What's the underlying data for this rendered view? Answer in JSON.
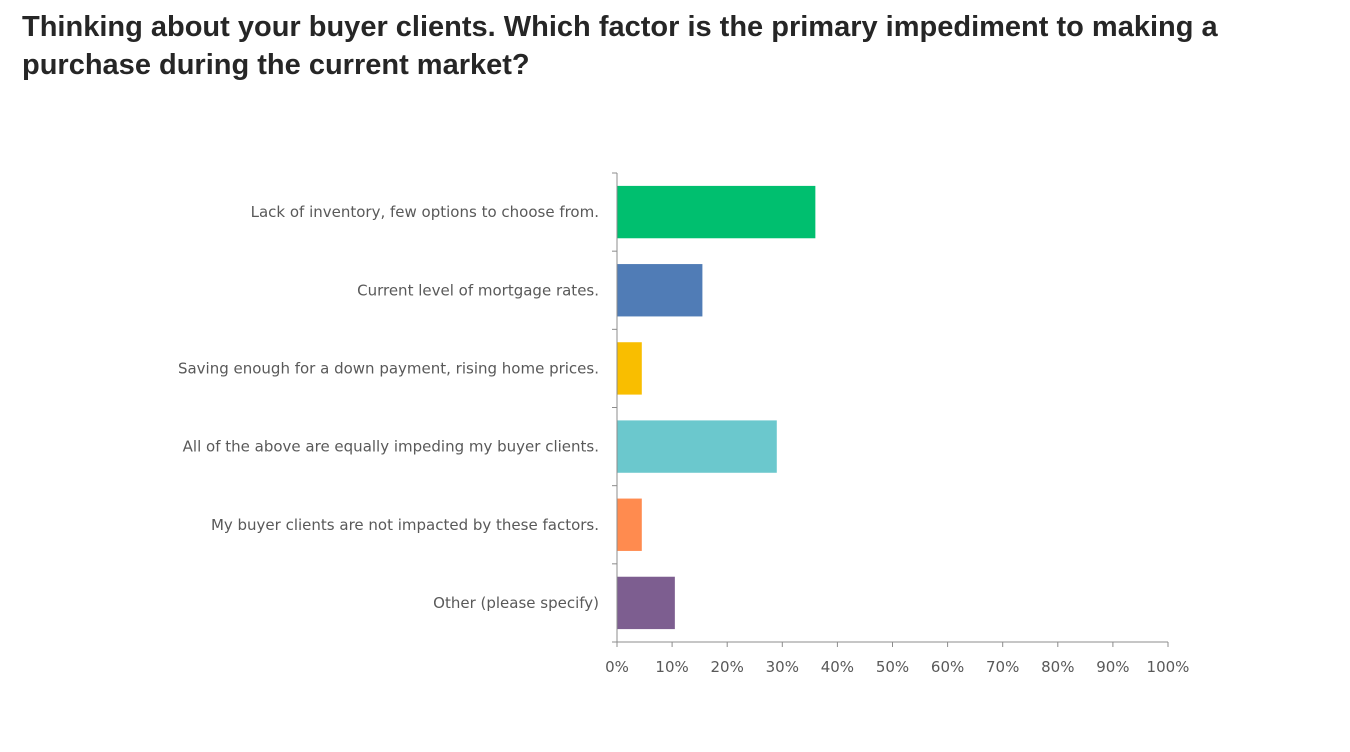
{
  "title": "Thinking about your buyer clients. Which factor is the primary impediment to making a purchase during the current market?",
  "chart_data": {
    "type": "bar",
    "orientation": "horizontal",
    "title": "Thinking about your buyer clients. Which factor is the primary impediment to making a purchase during the current market?",
    "categories": [
      "Lack of inventory, few options to choose from.",
      "Current level of mortgage rates.",
      "Saving enough for a down payment, rising home prices.",
      "All of the above are equally impeding my buyer clients.",
      "My buyer clients are not impacted by these factors.",
      "Other (please specify)"
    ],
    "values": [
      36,
      15.5,
      4.5,
      29,
      4.5,
      10.5
    ],
    "colors": [
      "#00BF6F",
      "#507CB6",
      "#F9BE00",
      "#6BC8CD",
      "#FF8B4F",
      "#7D5E90"
    ],
    "xlim": [
      0,
      100
    ],
    "x_ticks": [
      "0%",
      "10%",
      "20%",
      "30%",
      "40%",
      "50%",
      "60%",
      "70%",
      "80%",
      "90%",
      "100%"
    ],
    "xlabel": "",
    "ylabel": "",
    "grid": false,
    "legend": "none"
  }
}
